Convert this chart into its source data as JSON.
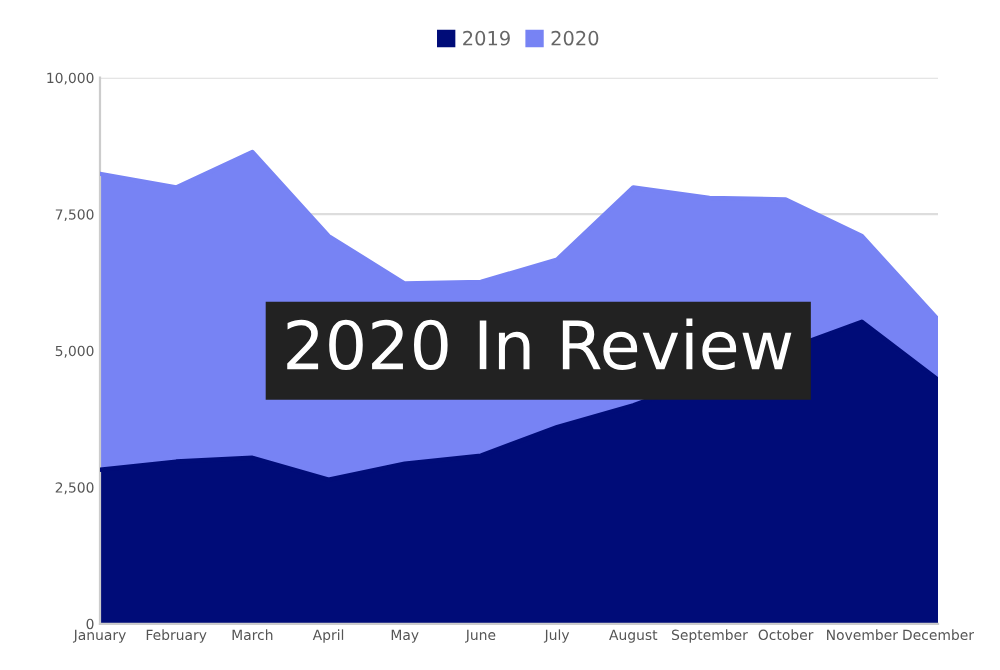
{
  "chart_data": {
    "type": "area",
    "categories": [
      "January",
      "February",
      "March",
      "April",
      "May",
      "June",
      "July",
      "August",
      "September",
      "October",
      "November",
      "December"
    ],
    "series": [
      {
        "name": "2020",
        "color": "#7783f4",
        "values": [
          8240,
          7990,
          8640,
          7100,
          6230,
          6260,
          6670,
          7990,
          7800,
          7770,
          7100,
          5570
        ]
      },
      {
        "name": "2019",
        "color": "#000c78",
        "values": [
          2820,
          2970,
          3040,
          2640,
          2930,
          3080,
          3600,
          4000,
          null,
          null,
          5530,
          4470
        ]
      }
    ],
    "ylim": [
      0,
      10000
    ],
    "yticks": [
      {
        "value": 0,
        "label": "0"
      },
      {
        "value": 2500,
        "label": "2,500"
      },
      {
        "value": 5000,
        "label": "5,000"
      },
      {
        "value": 7500,
        "label": "7,500"
      },
      {
        "value": 10000,
        "label": "10,000"
      }
    ],
    "grid": "y",
    "legend": "top",
    "annotations": [
      "2020 In Review"
    ]
  }
}
